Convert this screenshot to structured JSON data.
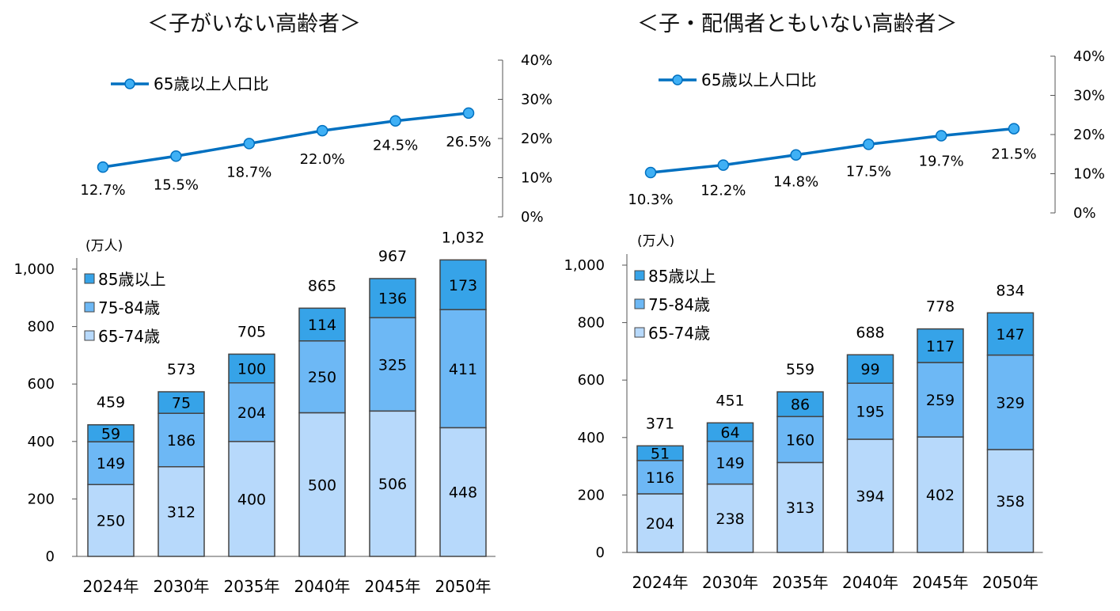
{
  "chart_data": [
    {
      "type": "bar",
      "title": "＜子がいない高齢者＞",
      "stacked": true,
      "ylabel": "(万人)",
      "ylim": [
        0,
        1000
      ],
      "yticks": [
        "0",
        "200",
        "400",
        "600",
        "800",
        "1,000"
      ],
      "categories": [
        "2024年",
        "2030年",
        "2035年",
        "2040年",
        "2045年",
        "2050年"
      ],
      "series": [
        {
          "name": "65-74歳",
          "values": [
            250,
            312,
            400,
            500,
            506,
            448
          ],
          "color": "#b7d9fb"
        },
        {
          "name": "75-84歳",
          "values": [
            149,
            186,
            204,
            250,
            325,
            411
          ],
          "color": "#6db8f5"
        },
        {
          "name": "85歳以上",
          "values": [
            59,
            75,
            100,
            114,
            136,
            173
          ],
          "color": "#36a3e8"
        }
      ],
      "totals": [
        "459",
        "573",
        "705",
        "865",
        "967",
        "1,032"
      ],
      "grid": false,
      "legend_position": "top-left",
      "line": {
        "type": "line",
        "name": "65歳以上人口比",
        "values": [
          12.7,
          15.5,
          18.7,
          22.0,
          24.5,
          26.5
        ],
        "labels": [
          "12.7%",
          "15.5%",
          "18.7%",
          "22.0%",
          "24.5%",
          "26.5%"
        ],
        "ylim": [
          0,
          40
        ],
        "yticks": [
          "0%",
          "10%",
          "20%",
          "30%",
          "40%"
        ],
        "axis_side": "right",
        "color": "#0070c0",
        "marker_color": "#3fb0f5"
      }
    },
    {
      "type": "bar",
      "title": "＜子・配偶者ともいない高齢者＞",
      "stacked": true,
      "ylabel": "(万人)",
      "ylim": [
        0,
        1000
      ],
      "yticks": [
        "0",
        "200",
        "400",
        "600",
        "800",
        "1,000"
      ],
      "categories": [
        "2024年",
        "2030年",
        "2035年",
        "2040年",
        "2045年",
        "2050年"
      ],
      "series": [
        {
          "name": "65-74歳",
          "values": [
            204,
            238,
            313,
            394,
            402,
            358
          ],
          "color": "#b7d9fb"
        },
        {
          "name": "75-84歳",
          "values": [
            116,
            149,
            160,
            195,
            259,
            329
          ],
          "color": "#6db8f5"
        },
        {
          "name": "85歳以上",
          "values": [
            51,
            64,
            86,
            99,
            117,
            147
          ],
          "color": "#36a3e8"
        }
      ],
      "totals": [
        "371",
        "451",
        "559",
        "688",
        "778",
        "834"
      ],
      "grid": false,
      "legend_position": "top-left",
      "line": {
        "type": "line",
        "name": "65歳以上人口比",
        "values": [
          10.3,
          12.2,
          14.8,
          17.5,
          19.7,
          21.5
        ],
        "labels": [
          "10.3%",
          "12.2%",
          "14.8%",
          "17.5%",
          "19.7%",
          "21.5%"
        ],
        "ylim": [
          0,
          40
        ],
        "yticks": [
          "0%",
          "10%",
          "20%",
          "30%",
          "40%"
        ],
        "axis_side": "right",
        "color": "#0070c0",
        "marker_color": "#3fb0f5"
      }
    }
  ]
}
